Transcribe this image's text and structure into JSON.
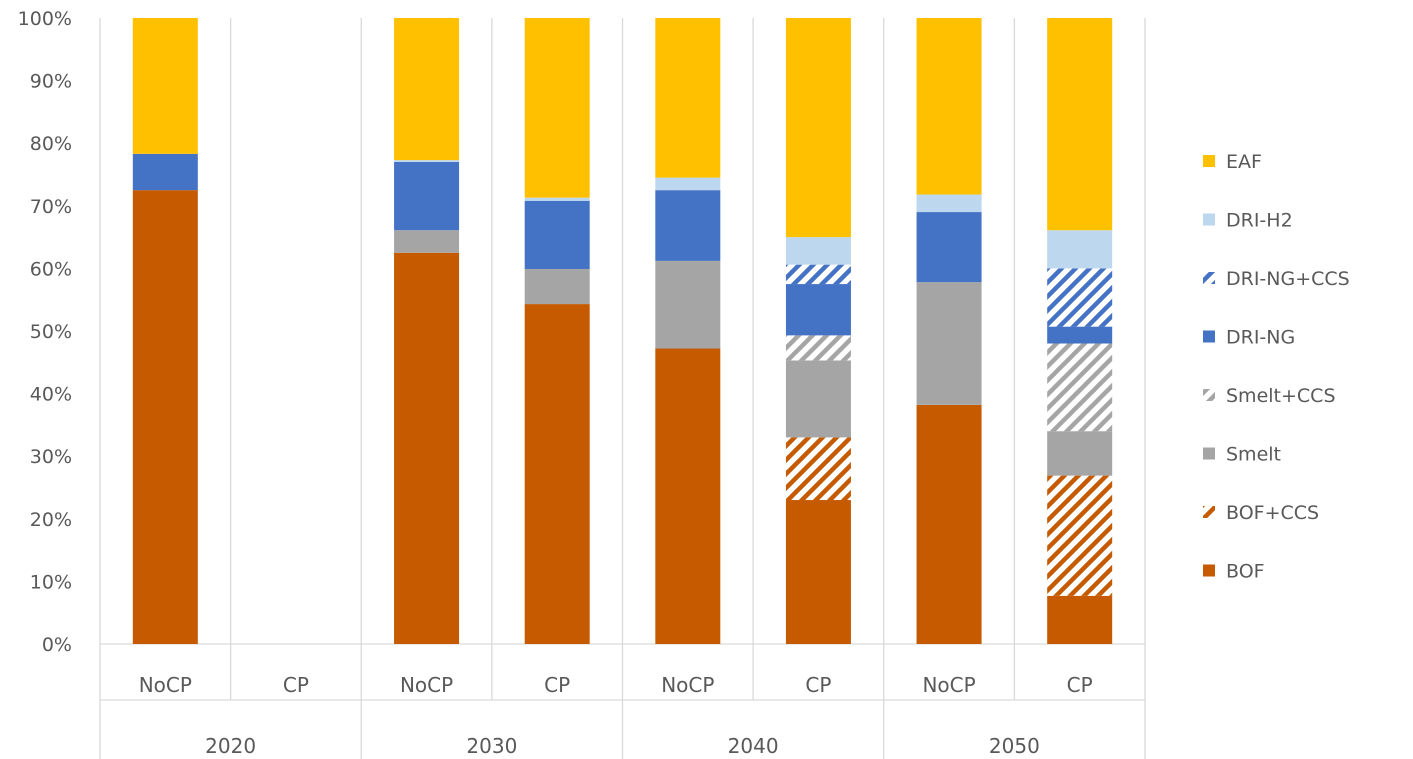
{
  "chart_data": {
    "type": "bar",
    "stacked": true,
    "percent_stacked": true,
    "ylim": [
      0,
      100
    ],
    "y_ticks": [
      "0%",
      "10%",
      "20%",
      "30%",
      "40%",
      "50%",
      "60%",
      "70%",
      "80%",
      "90%",
      "100%"
    ],
    "grid": "vertical group separators",
    "legend_position": "right",
    "groups": [
      {
        "year": "2020",
        "bars": [
          "NoCP",
          "CP"
        ]
      },
      {
        "year": "2030",
        "bars": [
          "NoCP",
          "CP"
        ]
      },
      {
        "year": "2040",
        "bars": [
          "NoCP",
          "CP"
        ]
      },
      {
        "year": "2050",
        "bars": [
          "NoCP",
          "CP"
        ]
      }
    ],
    "categories": [
      "2020 NoCP",
      "2020 CP",
      "2030 NoCP",
      "2030 CP",
      "2040 NoCP",
      "2040 CP",
      "2050 NoCP",
      "2050 CP"
    ],
    "series": [
      {
        "name": "BOF",
        "color": "#C55A00",
        "pattern": "solid",
        "values": [
          72.5,
          0,
          62.5,
          54.3,
          47.2,
          23.0,
          38.2,
          7.7
        ]
      },
      {
        "name": "BOF+CCS",
        "color": "#C55A00",
        "pattern": "hatched",
        "values": [
          0,
          0,
          0,
          0,
          0,
          10.0,
          0,
          19.2
        ]
      },
      {
        "name": "Smelt",
        "color": "#A5A5A5",
        "pattern": "solid",
        "values": [
          0,
          0,
          3.6,
          5.6,
          14.0,
          12.3,
          19.6,
          7.1
        ]
      },
      {
        "name": "Smelt+CCS",
        "color": "#A5A5A5",
        "pattern": "hatched",
        "values": [
          0,
          0,
          0,
          0,
          0,
          4.0,
          0,
          14.0
        ]
      },
      {
        "name": "DRI-NG",
        "color": "#4472C4",
        "pattern": "solid",
        "values": [
          5.8,
          0,
          10.9,
          10.9,
          11.3,
          8.2,
          11.2,
          2.7
        ]
      },
      {
        "name": "DRI-NG+CCS",
        "color": "#4472C4",
        "pattern": "hatched",
        "values": [
          0,
          0,
          0,
          0,
          0,
          3.1,
          0,
          9.3
        ]
      },
      {
        "name": "DRI-H2",
        "color": "#BDD7EE",
        "pattern": "solid",
        "values": [
          0,
          0,
          0.3,
          0.5,
          2.0,
          4.4,
          2.8,
          6.1
        ]
      },
      {
        "name": "EAF",
        "color": "#FFC000",
        "pattern": "solid",
        "values": [
          21.7,
          0,
          22.7,
          28.7,
          25.5,
          35.0,
          28.2,
          33.9
        ]
      }
    ],
    "legend_order": [
      "EAF",
      "DRI-H2",
      "DRI-NG+CCS",
      "DRI-NG",
      "Smelt+CCS",
      "Smelt",
      "BOF+CCS",
      "BOF"
    ]
  }
}
